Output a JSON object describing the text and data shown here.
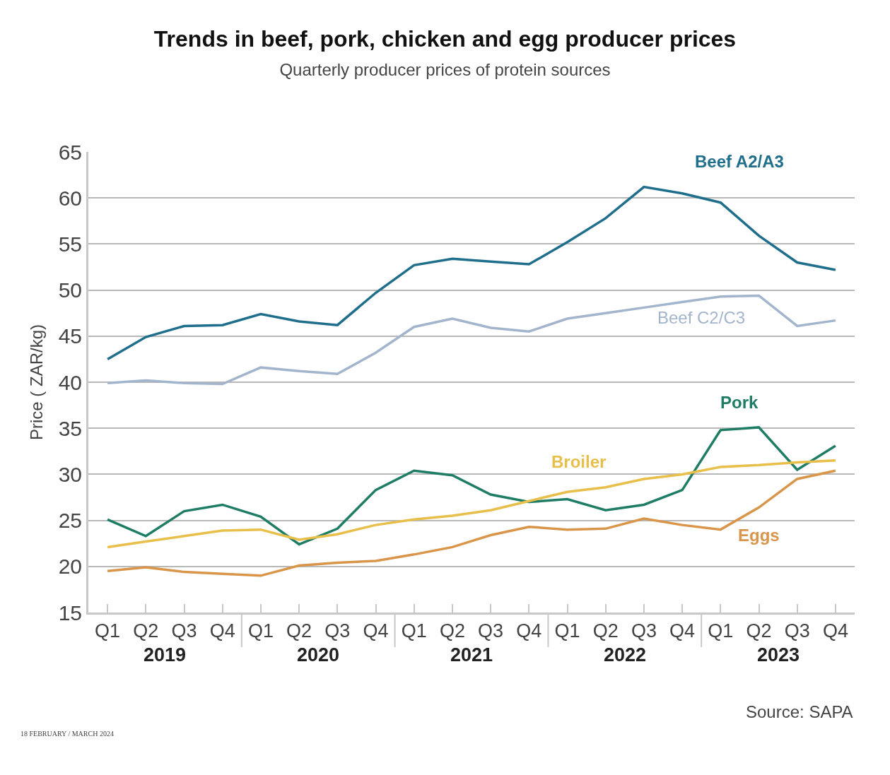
{
  "chart_data": {
    "type": "line",
    "title": "Trends in beef, pork, chicken and egg producer prices",
    "subtitle": "Quarterly producer prices of protein sources",
    "ylabel": "Price ( ZAR/kg)",
    "categories": [
      "Q1",
      "Q2",
      "Q3",
      "Q4",
      "Q1",
      "Q2",
      "Q3",
      "Q4",
      "Q1",
      "Q2",
      "Q3",
      "Q4",
      "Q1",
      "Q2",
      "Q3",
      "Q4",
      "Q1",
      "Q2",
      "Q3",
      "Q4"
    ],
    "series": [
      {
        "name": "Beef A2/A3",
        "color": "#1f6e8c",
        "values": [
          42.5,
          44.9,
          46.1,
          46.2,
          47.4,
          46.6,
          46.2,
          49.7,
          52.7,
          53.4,
          53.1,
          52.8,
          55.2,
          57.8,
          61.2,
          60.5,
          59.5,
          55.9,
          53.0,
          52.2
        ]
      },
      {
        "name": "Beef C2/C3",
        "color": "#a3b5cc",
        "values": [
          39.9,
          40.2,
          39.9,
          39.8,
          41.6,
          41.2,
          40.9,
          43.2,
          46.0,
          46.9,
          45.9,
          45.5,
          46.9,
          47.5,
          48.1,
          48.7,
          49.3,
          49.4,
          46.1,
          46.7
        ]
      },
      {
        "name": "Pork",
        "color": "#1e7d64",
        "values": [
          25.1,
          23.3,
          26.0,
          26.7,
          25.4,
          22.4,
          24.1,
          28.3,
          30.4,
          29.9,
          27.8,
          27.0,
          27.3,
          26.1,
          26.7,
          28.3,
          34.8,
          35.1,
          30.5,
          33.1
        ]
      },
      {
        "name": "Broiler",
        "color": "#e8bf4a",
        "values": [
          22.1,
          22.7,
          23.3,
          23.9,
          24.0,
          22.9,
          23.5,
          24.5,
          25.1,
          25.5,
          26.1,
          27.1,
          28.1,
          28.6,
          29.5,
          30.0,
          30.8,
          31.0,
          31.3,
          31.5
        ]
      },
      {
        "name": "Eggs",
        "color": "#d9954a",
        "values": [
          19.5,
          19.9,
          19.4,
          19.2,
          19.0,
          20.1,
          20.4,
          20.6,
          21.3,
          22.1,
          23.4,
          24.3,
          24.0,
          24.1,
          25.2,
          24.5,
          24.0,
          26.4,
          29.5,
          30.4
        ]
      }
    ],
    "ylim": [
      15,
      65
    ],
    "yticks": [
      15,
      20,
      25,
      30,
      35,
      40,
      45,
      50,
      55,
      60,
      65
    ],
    "grid": "y",
    "legend": false,
    "marker": "none",
    "line_style": "solid",
    "annotations": [
      "2019",
      "2020",
      "2021",
      "2022",
      "2023",
      "Source: SAPA",
      "18 FEBRUARY / MARCH 2024"
    ]
  }
}
